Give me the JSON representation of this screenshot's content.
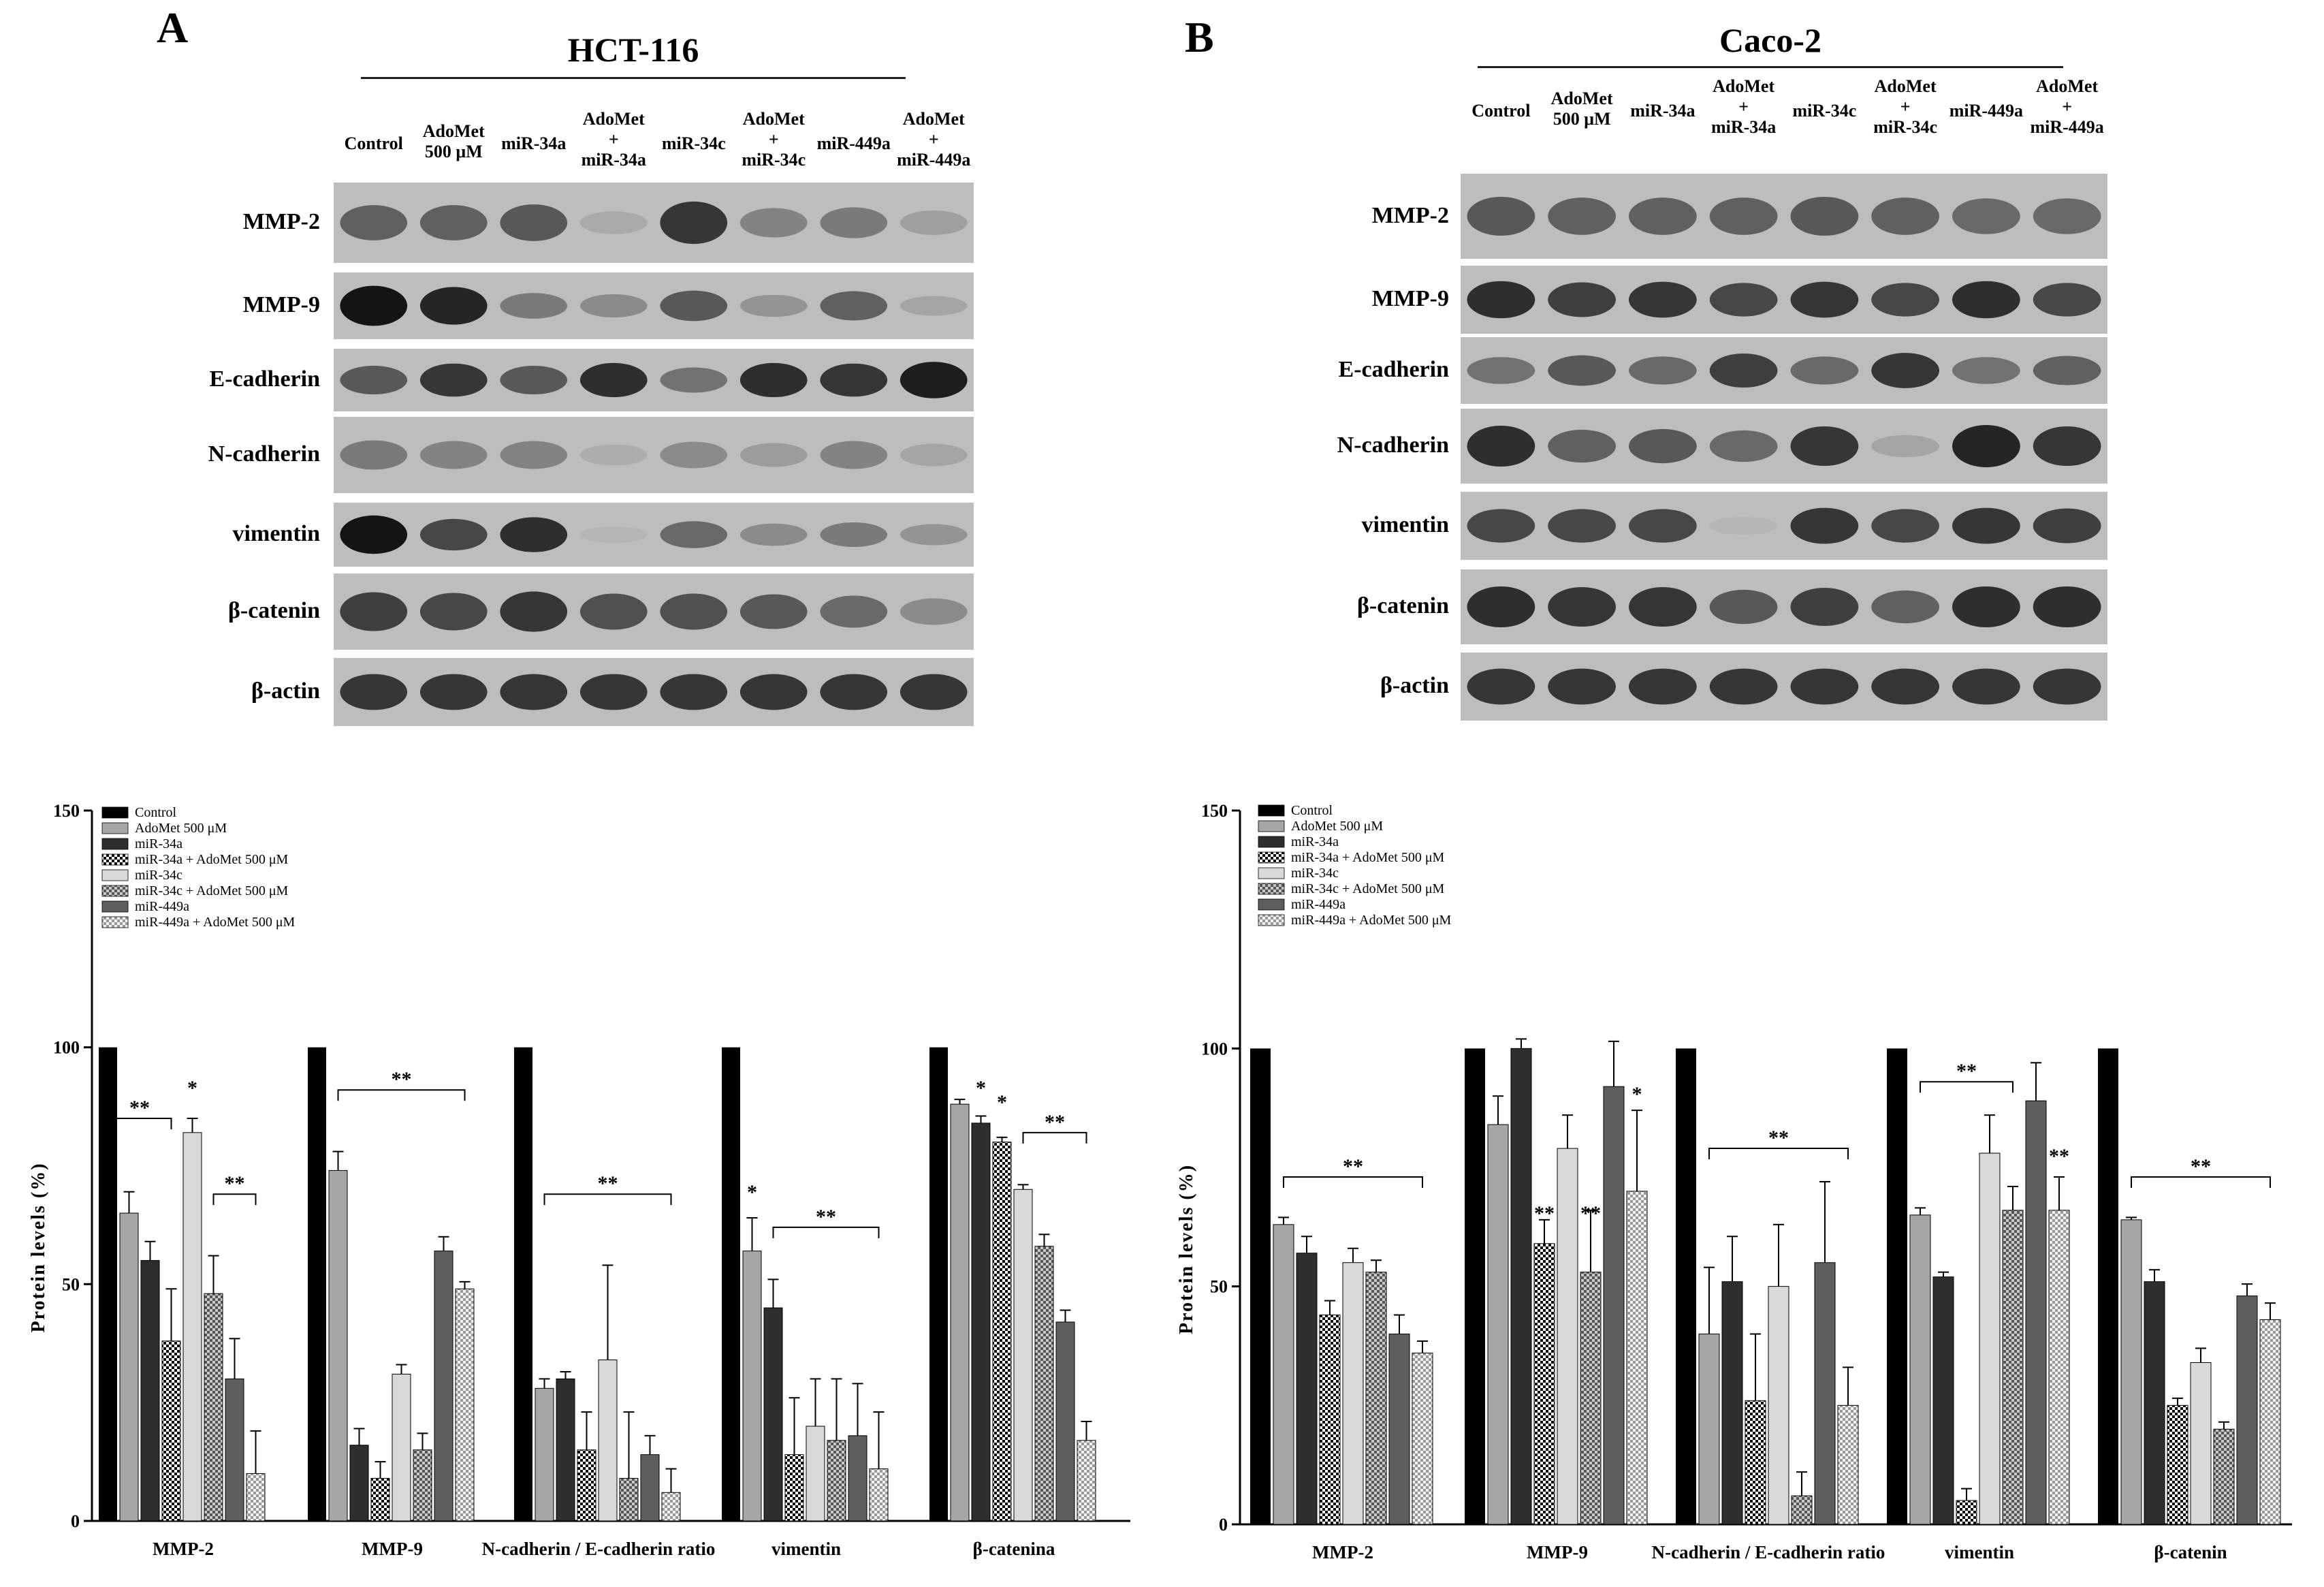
{
  "panels": [
    {
      "letter": "A",
      "cell_line": "HCT-116",
      "lanes": [
        "Control",
        "AdoMet\n500 μM",
        "miR-34a",
        "AdoMet\n+\nmiR-34a",
        "miR-34c",
        "AdoMet\n+\nmiR-34c",
        "miR-449a",
        "AdoMet\n+\nmiR-449a"
      ],
      "blot_rows": [
        {
          "label": "MMP-2",
          "intensity": [
            0.55,
            0.55,
            0.6,
            0.12,
            0.8,
            0.35,
            0.4,
            0.18
          ]
        },
        {
          "label": "MMP-9",
          "intensity": [
            1.0,
            0.9,
            0.4,
            0.3,
            0.6,
            0.25,
            0.55,
            0.15
          ]
        },
        {
          "label": "E-cadherin",
          "intensity": [
            0.6,
            0.8,
            0.6,
            0.85,
            0.45,
            0.85,
            0.8,
            0.95
          ]
        },
        {
          "label": "N-cadherin",
          "intensity": [
            0.4,
            0.35,
            0.35,
            0.1,
            0.3,
            0.2,
            0.35,
            0.15
          ]
        },
        {
          "label": "vimentin",
          "intensity": [
            1.0,
            0.7,
            0.85,
            0.05,
            0.5,
            0.3,
            0.4,
            0.25
          ]
        },
        {
          "label": "β-catenin",
          "intensity": [
            0.75,
            0.7,
            0.8,
            0.65,
            0.65,
            0.6,
            0.5,
            0.3
          ]
        },
        {
          "label": "β-actin",
          "intensity": [
            0.8,
            0.8,
            0.8,
            0.8,
            0.8,
            0.8,
            0.8,
            0.8
          ]
        }
      ]
    },
    {
      "letter": "B",
      "cell_line": "Caco-2",
      "lanes": [
        "Control",
        "AdoMet\n500 μM",
        "miR-34a",
        "AdoMet\n+\nmiR-34a",
        "miR-34c",
        "AdoMet\n+\nmiR-34c",
        "miR-449a",
        "AdoMet\n+\nmiR-449a"
      ],
      "blot_rows": [
        {
          "label": "MMP-2",
          "intensity": [
            0.6,
            0.55,
            0.55,
            0.55,
            0.6,
            0.55,
            0.5,
            0.5
          ]
        },
        {
          "label": "MMP-9",
          "intensity": [
            0.85,
            0.75,
            0.8,
            0.7,
            0.8,
            0.7,
            0.85,
            0.7
          ]
        },
        {
          "label": "E-cadherin",
          "intensity": [
            0.45,
            0.6,
            0.5,
            0.75,
            0.5,
            0.8,
            0.45,
            0.55
          ]
        },
        {
          "label": "N-cadherin",
          "intensity": [
            0.85,
            0.55,
            0.6,
            0.5,
            0.8,
            0.15,
            0.9,
            0.8
          ]
        },
        {
          "label": "vimentin",
          "intensity": [
            0.7,
            0.7,
            0.7,
            0.05,
            0.8,
            0.7,
            0.8,
            0.75
          ]
        },
        {
          "label": "β-catenin",
          "intensity": [
            0.85,
            0.8,
            0.8,
            0.6,
            0.75,
            0.55,
            0.85,
            0.85
          ]
        },
        {
          "label": "β-actin",
          "intensity": [
            0.8,
            0.8,
            0.8,
            0.8,
            0.8,
            0.8,
            0.8,
            0.8
          ]
        }
      ]
    }
  ],
  "chart_data": [
    {
      "type": "bar",
      "panel": "A",
      "ylabel": "Protein levels (%)",
      "ylim": [
        0,
        150
      ],
      "yticks": [
        0,
        50,
        100,
        150
      ],
      "categories": [
        "MMP-2",
        "MMP-9",
        "N-cadherin / E-cadherin ratio",
        "vimentin",
        "β-catenina"
      ],
      "legend_position": "top-left",
      "series": [
        {
          "name": "Control",
          "values": [
            100,
            100,
            100,
            100,
            100
          ],
          "errors": [
            0,
            0,
            0,
            0,
            0
          ]
        },
        {
          "name": "AdoMet 500 μM",
          "values": [
            65,
            74,
            28,
            57,
            88
          ],
          "errors": [
            4.5,
            4,
            2,
            7,
            1
          ]
        },
        {
          "name": "miR-34a",
          "values": [
            55,
            16,
            30,
            45,
            84
          ],
          "errors": [
            4,
            3.5,
            1.5,
            6,
            1.5
          ]
        },
        {
          "name": "miR-34a + AdoMet 500 μM",
          "values": [
            38,
            9,
            15,
            14,
            80
          ],
          "errors": [
            11,
            3.5,
            8,
            12,
            1
          ]
        },
        {
          "name": "miR-34c",
          "values": [
            82,
            31,
            34,
            20,
            70
          ],
          "errors": [
            3,
            2,
            20,
            10,
            1
          ]
        },
        {
          "name": "miR-34c + AdoMet 500 μM",
          "values": [
            48,
            15,
            9,
            17,
            58
          ],
          "errors": [
            8,
            3.5,
            14,
            13,
            2.5
          ]
        },
        {
          "name": "miR-449a",
          "values": [
            30,
            57,
            14,
            18,
            42
          ],
          "errors": [
            8.5,
            3,
            4,
            11,
            2.5
          ]
        },
        {
          "name": "miR-449a + AdoMet 500 μM",
          "values": [
            10,
            49,
            6,
            11,
            17
          ],
          "errors": [
            9,
            1.5,
            5,
            12,
            4
          ]
        }
      ],
      "annotations": [
        {
          "text": "**",
          "category": "MMP-2",
          "from_series": 0,
          "to_series": 3,
          "y": 85
        },
        {
          "text": "*",
          "category": "MMP-2",
          "series": 4,
          "y": 90
        },
        {
          "text": "**",
          "category": "MMP-2",
          "from_series": 5,
          "to_series": 7,
          "y": 69
        },
        {
          "text": "**",
          "category": "MMP-9",
          "from_series": 1,
          "to_series": 7,
          "y": 91
        },
        {
          "text": "**",
          "category": "N-cadherin / E-cadherin ratio",
          "from_series": 1,
          "to_series": 7,
          "y": 69
        },
        {
          "text": "*",
          "category": "vimentin",
          "series": 1,
          "y": 68
        },
        {
          "text": "**",
          "category": "vimentin",
          "from_series": 2,
          "to_series": 7,
          "y": 62
        },
        {
          "text": "*",
          "category": "β-catenina",
          "series": 2,
          "y": 90
        },
        {
          "text": "*",
          "category": "β-catenina",
          "series": 3,
          "y": 87
        },
        {
          "text": "**",
          "category": "β-catenina",
          "from_series": 4,
          "to_series": 7,
          "y": 82
        }
      ]
    },
    {
      "type": "bar",
      "panel": "B",
      "ylabel": "Protein levels (%)",
      "ylim": [
        0,
        150
      ],
      "yticks": [
        0,
        50,
        100,
        150
      ],
      "categories": [
        "MMP-2",
        "MMP-9",
        "N-cadherin / E-cadherin ratio",
        "vimentin",
        "β-catenin"
      ],
      "legend_position": "top-left",
      "series": [
        {
          "name": "Control",
          "values": [
            100,
            100,
            100,
            100,
            100
          ],
          "errors": [
            0,
            0,
            0,
            0,
            0
          ]
        },
        {
          "name": "AdoMet 500 μM",
          "values": [
            63,
            84,
            40,
            65,
            64
          ],
          "errors": [
            1.5,
            6,
            14,
            1.5,
            0.5
          ]
        },
        {
          "name": "miR-34a",
          "values": [
            57,
            100,
            51,
            52,
            51
          ],
          "errors": [
            3.5,
            2,
            9.5,
            1,
            2.5
          ]
        },
        {
          "name": "miR-34a + AdoMet 500 μM",
          "values": [
            44,
            59,
            26,
            5,
            25
          ],
          "errors": [
            3,
            5,
            14,
            2.5,
            1.5
          ]
        },
        {
          "name": "miR-34c",
          "values": [
            55,
            79,
            50,
            78,
            34
          ],
          "errors": [
            3,
            7,
            13,
            8,
            3
          ]
        },
        {
          "name": "miR-34c + AdoMet 500 μM",
          "values": [
            53,
            53,
            6,
            66,
            20
          ],
          "errors": [
            2.5,
            13,
            5,
            5,
            1.5
          ]
        },
        {
          "name": "miR-449a",
          "values": [
            40,
            92,
            55,
            89,
            48
          ],
          "errors": [
            4,
            9.5,
            17,
            8,
            2.5
          ]
        },
        {
          "name": "miR-449a + AdoMet 500 μM",
          "values": [
            36,
            70,
            25,
            66,
            43
          ],
          "errors": [
            2.5,
            17,
            8,
            7,
            3.5
          ]
        }
      ],
      "annotations": [
        {
          "text": "**",
          "category": "MMP-2",
          "from_series": 1,
          "to_series": 7,
          "y": 73
        },
        {
          "text": "**",
          "category": "MMP-9",
          "series": 3,
          "y": 64
        },
        {
          "text": "**",
          "category": "MMP-9",
          "series": 5,
          "y": 64
        },
        {
          "text": "*",
          "category": "MMP-9",
          "series": 7,
          "y": 89
        },
        {
          "text": "**",
          "category": "N-cadherin / E-cadherin ratio",
          "from_series": 1,
          "to_series": 7,
          "y": 79
        },
        {
          "text": "**",
          "category": "vimentin",
          "from_series": 1,
          "to_series": 5,
          "y": 93
        },
        {
          "text": "**",
          "category": "vimentin",
          "series": 7,
          "y": 76
        },
        {
          "text": "**",
          "category": "β-catenin",
          "from_series": 1,
          "to_series": 7,
          "y": 73
        }
      ]
    }
  ]
}
